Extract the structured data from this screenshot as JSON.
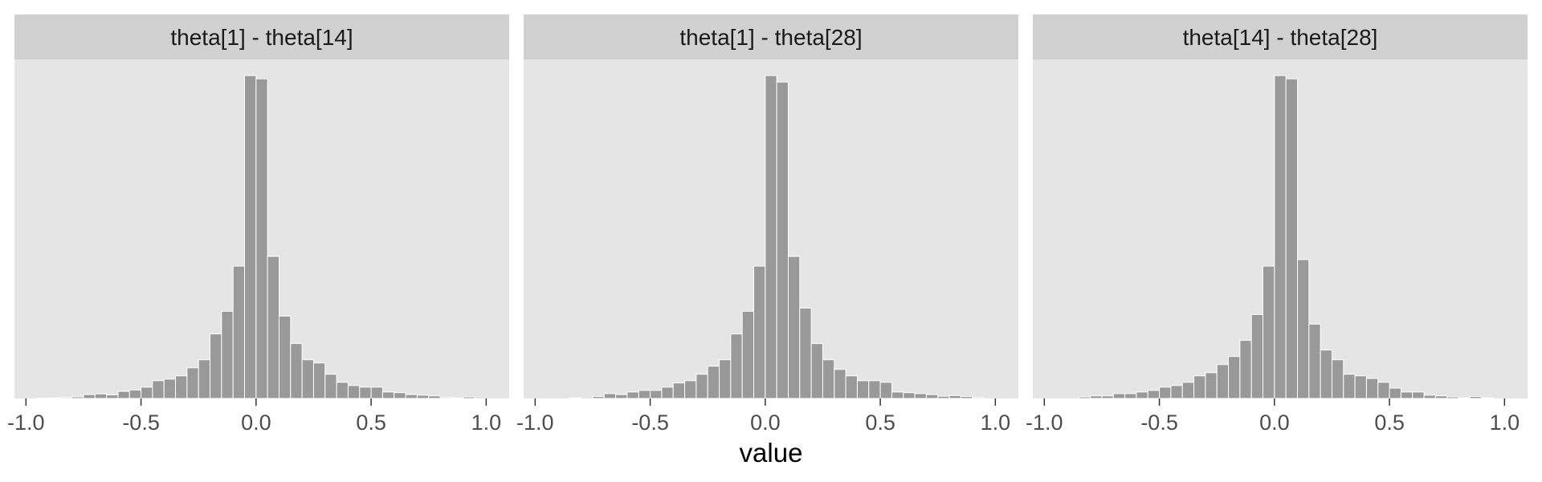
{
  "chart_data": {
    "type": "histogram",
    "xlabel": "value",
    "ylabel": "",
    "xlim": [
      -1.05,
      1.1
    ],
    "ylim": [
      0,
      1.05
    ],
    "x_ticks": [
      -1.0,
      -0.5,
      0.0,
      0.5,
      1.0
    ],
    "x_tick_labels": [
      "-1.0",
      "-0.5",
      "0.0",
      "0.5",
      "1.0"
    ],
    "bin_width": 0.05,
    "grid": false,
    "y_axis_shown": false,
    "colors": {
      "panel_background": "#e5e5e5",
      "strip_background": "#d1d1d1",
      "bar_fill": "#999999",
      "bar_outline": "#ffffff",
      "tick_color": "#333333"
    },
    "facets": [
      {
        "label": "theta[1] - theta[14]",
        "bin_start": -0.95,
        "counts": [
          0.001,
          0.002,
          0.003,
          0.005,
          0.012,
          0.014,
          0.011,
          0.022,
          0.026,
          0.035,
          0.055,
          0.06,
          0.07,
          0.095,
          0.12,
          0.2,
          0.27,
          0.41,
          1.0,
          0.99,
          0.44,
          0.255,
          0.17,
          0.12,
          0.11,
          0.075,
          0.05,
          0.04,
          0.035,
          0.035,
          0.02,
          0.018,
          0.012,
          0.01,
          0.008,
          0.003,
          0.002,
          0.005
        ]
      },
      {
        "label": "theta[1] - theta[28]",
        "bin_start": -0.9,
        "counts": [
          0.0,
          0.002,
          0.0,
          0.006,
          0.015,
          0.012,
          0.02,
          0.025,
          0.025,
          0.035,
          0.048,
          0.055,
          0.075,
          0.1,
          0.12,
          0.2,
          0.27,
          0.41,
          1.0,
          0.98,
          0.44,
          0.28,
          0.17,
          0.12,
          0.09,
          0.07,
          0.055,
          0.055,
          0.05,
          0.02,
          0.018,
          0.015,
          0.012,
          0.007,
          0.009,
          0.006,
          0.003
        ]
      },
      {
        "label": "theta[14] - theta[28]",
        "bin_start": -0.85,
        "counts": [
          0.005,
          0.008,
          0.008,
          0.015,
          0.015,
          0.02,
          0.025,
          0.035,
          0.04,
          0.05,
          0.07,
          0.08,
          0.105,
          0.13,
          0.18,
          0.26,
          0.41,
          1.0,
          0.99,
          0.43,
          0.23,
          0.15,
          0.12,
          0.075,
          0.07,
          0.062,
          0.05,
          0.032,
          0.02,
          0.02,
          0.01,
          0.008,
          0.005,
          0.002,
          0.006,
          0.002
        ]
      }
    ]
  }
}
